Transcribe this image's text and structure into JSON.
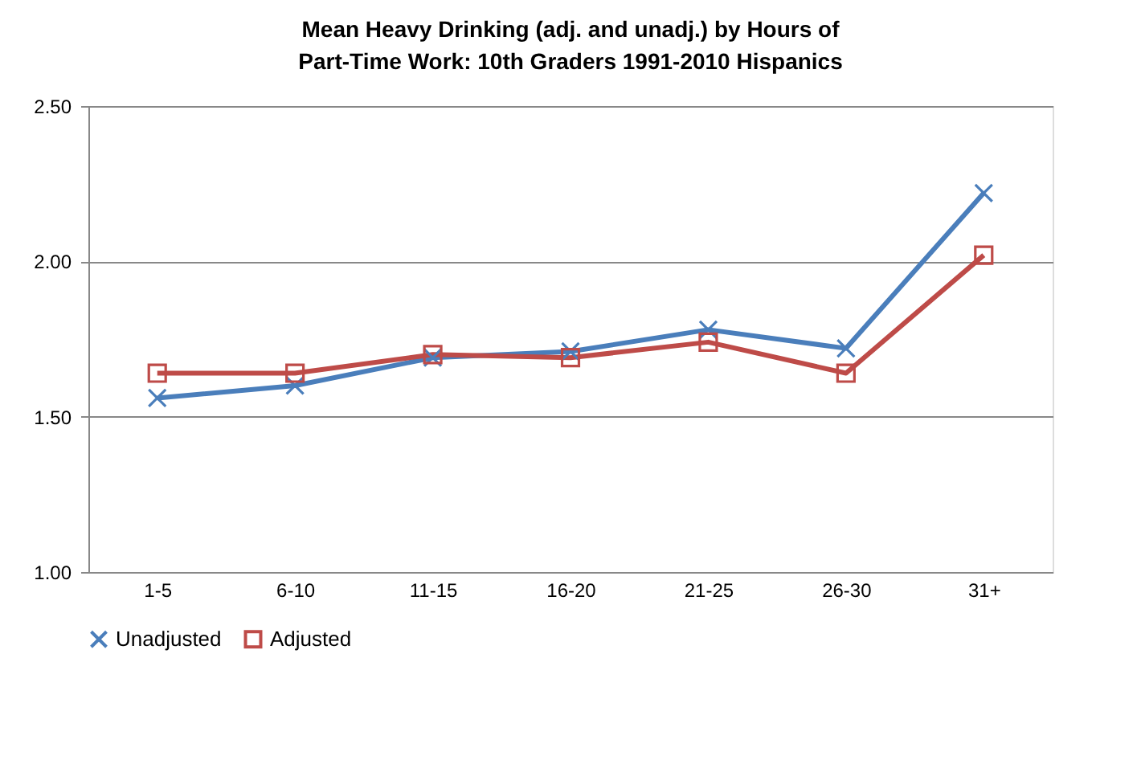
{
  "chart_data": {
    "type": "line",
    "title": "Mean Heavy Drinking (adj. and unadj.) by Hours of Part-Time Work:  10th Graders   1991-2010   Hispanics",
    "categories": [
      "1-5",
      "6-10",
      "11-15",
      "16-20",
      "21-25",
      "26-30",
      "31+"
    ],
    "series": [
      {
        "name": "Unadjusted",
        "color": "#4a7ebb",
        "marker": "cross",
        "values": [
          1.56,
          1.6,
          1.69,
          1.71,
          1.78,
          1.72,
          2.22
        ]
      },
      {
        "name": "Adjusted",
        "color": "#be4b48",
        "marker": "square",
        "values": [
          1.64,
          1.64,
          1.7,
          1.69,
          1.74,
          1.64,
          2.02
        ]
      }
    ],
    "ylim": [
      1.0,
      2.5
    ],
    "yticks": [
      {
        "value": 1.0,
        "label": "1.00"
      },
      {
        "value": 1.5,
        "label": "1.50"
      },
      {
        "value": 2.0,
        "label": "2.00"
      },
      {
        "value": 2.5,
        "label": "2.50"
      }
    ],
    "grid": "y",
    "legend": "bottom",
    "line_style": "solid"
  }
}
